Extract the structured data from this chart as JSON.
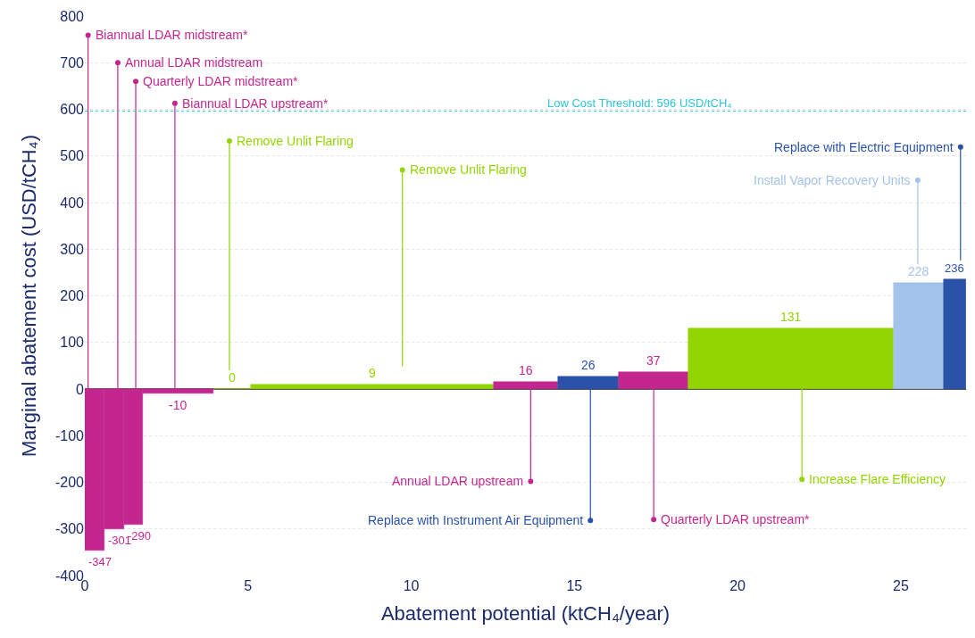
{
  "chart_data": {
    "type": "histogram",
    "xlabel": "Abatement potential (ktCH₄/year)",
    "ylabel": "Marginal abatement cost (USD/tCH₄)",
    "bins": [
      0,
      0.6,
      1.2,
      1.78,
      3.93,
      5.1,
      12.54,
      14.51,
      16.37,
      18.5,
      24.78,
      26.31,
      27.0
    ],
    "values": [
      -347,
      -301,
      -290,
      -10,
      0,
      9,
      16,
      26,
      37,
      131,
      228,
      236
    ],
    "colors": [
      "#c4268f",
      "#c4268f",
      "#c4268f",
      "#c4268f",
      "#93d500",
      "#93d500",
      "#c4268f",
      "#2a52a8",
      "#c4268f",
      "#93d500",
      "#a3c3ea",
      "#2a52a8"
    ],
    "data_labels": true,
    "xlim": [
      0,
      27.0
    ],
    "xticks": [
      0,
      5,
      10,
      15,
      20,
      25
    ],
    "ylim": [
      -400,
      800
    ],
    "yticks": [
      -400,
      -300,
      -200,
      -100,
      0,
      100,
      200,
      300,
      400,
      500,
      600,
      700,
      800
    ],
    "grid": "y",
    "ref_lines": [
      {
        "axis": "y",
        "value": 596,
        "label": "Low Cost Threshold: 596 USD/tCH₄",
        "color": "#2ec4d6",
        "line_style": "dotted"
      }
    ],
    "annotations": [
      {
        "text": "Biannual LDAR midstream*",
        "x": 0.1,
        "y": 759
      },
      {
        "text": "Annual LDAR midstream",
        "x": 1.01,
        "y": 700
      },
      {
        "text": "Quarterly LDAR midstream*",
        "x": 1.56,
        "y": 660
      },
      {
        "text": "Biannual LDAR upstream*",
        "x": 2.76,
        "y": 613
      },
      {
        "text": "Remove Unlit Flaring",
        "x": 4.43,
        "y": 532
      },
      {
        "text": "Remove Unlit Flaring",
        "x": 9.73,
        "y": 470
      },
      {
        "text": "Annual LDAR upstream",
        "x": 13.66,
        "y": -198
      },
      {
        "text": "Replace with Instrument Air Equipment",
        "x": 15.49,
        "y": -282
      },
      {
        "text": "Quarterly LDAR upstream*",
        "x": 17.43,
        "y": -280
      },
      {
        "text": "Increase Flare Efficiency",
        "x": 21.97,
        "y": -194
      },
      {
        "text": "Install Vapor Recovery Units",
        "x": 25.52,
        "y": 448
      },
      {
        "text": "Replace with Electric Equipment",
        "x": 26.83,
        "y": 519
      }
    ]
  }
}
